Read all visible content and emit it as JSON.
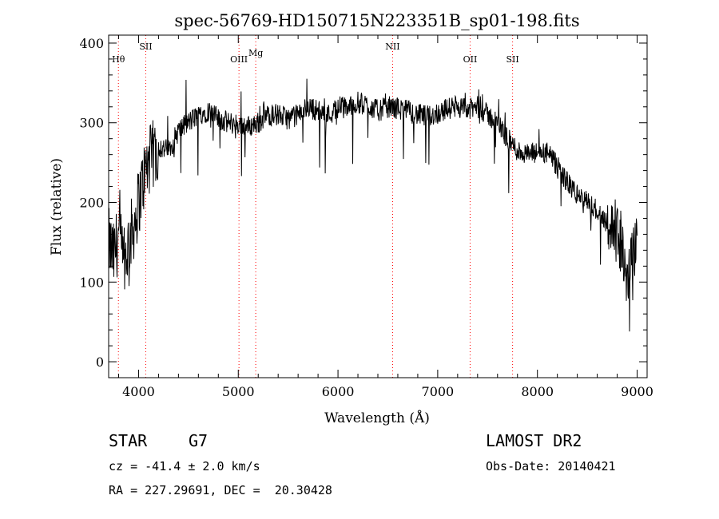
{
  "chart_data": {
    "type": "line",
    "title": "spec-56769-HD150715N223351B_sp01-198.fits",
    "xlabel": "Wavelength (Å)",
    "ylabel": "Flux (relative)",
    "xlim": [
      3700,
      9100
    ],
    "ylim": [
      -20,
      410
    ],
    "xticks": [
      4000,
      5000,
      6000,
      7000,
      8000,
      9000
    ],
    "yticks": [
      0,
      100,
      200,
      300,
      400
    ],
    "grid": false,
    "line_color": "#000000",
    "marker_color": "#ff0000",
    "lines": [
      {
        "label": "Hθ",
        "x": 3798
      },
      {
        "label": "SII",
        "x": 4072
      },
      {
        "label": "OIII",
        "x": 5007
      },
      {
        "label": "Mg",
        "x": 5175
      },
      {
        "label": "NII",
        "x": 6548
      },
      {
        "label": "OII",
        "x": 7325
      },
      {
        "label": "SII",
        "x": 7751
      }
    ],
    "series": [
      {
        "x": [
          3700,
          3750,
          3800,
          3850,
          3900,
          3950,
          4000,
          4050,
          4100,
          4150,
          4200,
          4300,
          4400,
          4500,
          4600,
          4700,
          4800,
          4900,
          5000,
          5100,
          5200,
          5300,
          5400,
          5500,
          5600,
          5700,
          5800,
          5900,
          6000,
          6100,
          6200,
          6300,
          6400,
          6500,
          6600,
          6700,
          6800,
          6900,
          7000,
          7100,
          7200,
          7300,
          7400,
          7500,
          7600,
          7700,
          7800,
          7900,
          8000,
          8100,
          8200,
          8300,
          8400,
          8500,
          8600,
          8700,
          8800,
          8850,
          8900,
          8950,
          9000
        ],
        "y": [
          150,
          130,
          160,
          120,
          150,
          170,
          200,
          230,
          250,
          260,
          270,
          265,
          290,
          300,
          310,
          315,
          305,
          300,
          298,
          295,
          300,
          310,
          310,
          305,
          310,
          320,
          315,
          310,
          318,
          320,
          325,
          322,
          315,
          320,
          318,
          315,
          310,
          308,
          312,
          318,
          320,
          316,
          320,
          310,
          300,
          280,
          265,
          260,
          262,
          262,
          245,
          225,
          210,
          200,
          190,
          175,
          158,
          140,
          100,
          130,
          150
        ]
      }
    ]
  },
  "footer": {
    "class_label": "STAR",
    "subclass": "G7",
    "survey": "LAMOST DR2",
    "redshift": "cz = -41.4 ± 2.0 km/s",
    "obs_date": "Obs-Date: 20140421",
    "coords": "RA = 227.29691, DEC =  20.30428"
  }
}
